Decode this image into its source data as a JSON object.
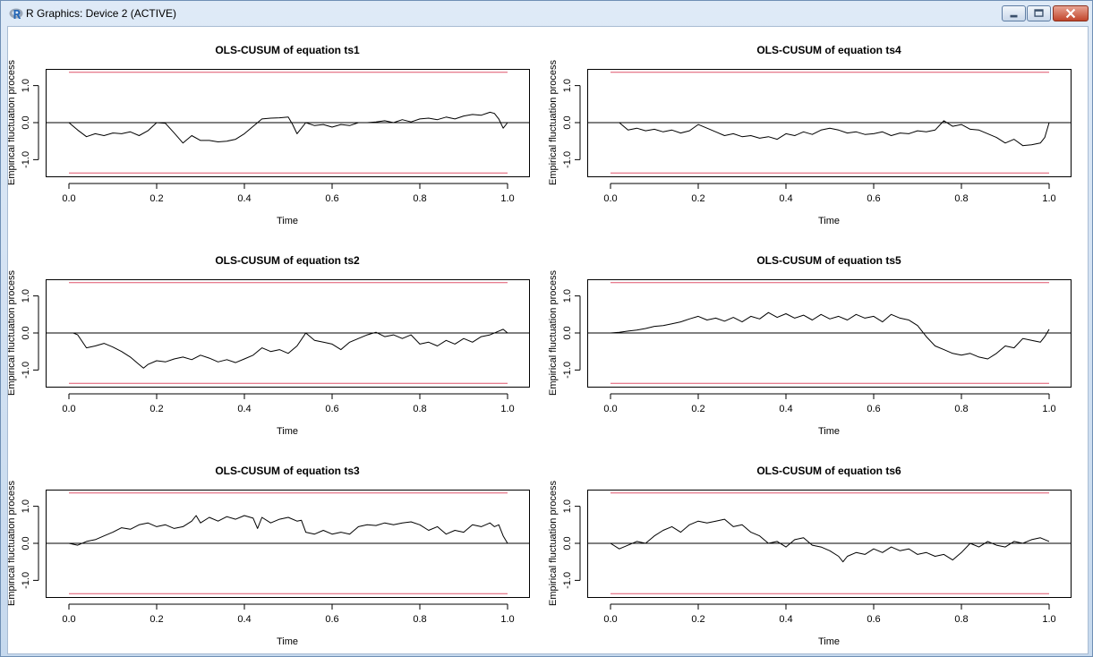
{
  "window": {
    "title": "R Graphics: Device 2 (ACTIVE)",
    "app_icon": "r-logo-icon",
    "controls": [
      "minimize-icon",
      "maximize-icon",
      "close-icon"
    ]
  },
  "colors": {
    "line": "#000000",
    "boundary": "#df536b",
    "zero_line": "#000000",
    "frame": "#000000"
  },
  "chart_data": [
    {
      "type": "line",
      "title": "OLS-CUSUM of equation ts1",
      "xlabel": "Time",
      "ylabel": "Empirical fluctuation process",
      "xlim": [
        0,
        1
      ],
      "ylim": [
        -1.45,
        1.45
      ],
      "xticks": [
        0.0,
        0.2,
        0.4,
        0.6,
        0.8,
        1.0
      ],
      "xtick_labels": [
        "0.0",
        "0.2",
        "0.4",
        "0.6",
        "0.8",
        "1.0"
      ],
      "yticks": [
        -1.0,
        0.0,
        1.0
      ],
      "ytick_labels": [
        "-1.0",
        "0.0",
        "1.0"
      ],
      "boundaries": [
        1.36,
        -1.36
      ],
      "zero_line": 0,
      "series": [
        {
          "x": [
            0.0,
            0.02,
            0.04,
            0.06,
            0.08,
            0.1,
            0.12,
            0.14,
            0.16,
            0.18,
            0.2,
            0.22,
            0.24,
            0.26,
            0.28,
            0.3,
            0.32,
            0.34,
            0.36,
            0.38,
            0.4,
            0.42,
            0.44,
            0.46,
            0.48,
            0.5,
            0.51,
            0.52,
            0.54,
            0.56,
            0.58,
            0.6,
            0.62,
            0.64,
            0.66,
            0.68,
            0.7,
            0.72,
            0.74,
            0.76,
            0.78,
            0.8,
            0.82,
            0.84,
            0.86,
            0.88,
            0.9,
            0.92,
            0.94,
            0.96,
            0.97,
            0.98,
            0.99,
            1.0
          ],
          "y": [
            0.0,
            -0.2,
            -0.38,
            -0.3,
            -0.35,
            -0.28,
            -0.3,
            -0.25,
            -0.35,
            -0.22,
            0.0,
            -0.02,
            -0.28,
            -0.55,
            -0.35,
            -0.48,
            -0.48,
            -0.52,
            -0.5,
            -0.45,
            -0.3,
            -0.1,
            0.1,
            0.12,
            0.13,
            0.15,
            -0.05,
            -0.3,
            0.0,
            -0.08,
            -0.05,
            -0.12,
            -0.05,
            -0.08,
            0.0,
            0.0,
            0.02,
            0.05,
            0.0,
            0.08,
            0.02,
            0.1,
            0.12,
            0.08,
            0.15,
            0.1,
            0.18,
            0.22,
            0.2,
            0.28,
            0.25,
            0.1,
            -0.15,
            0.0
          ]
        }
      ]
    },
    {
      "type": "line",
      "title": "OLS-CUSUM of equation ts4",
      "xlabel": "Time",
      "ylabel": "Empirical fluctuation process",
      "xlim": [
        0,
        1
      ],
      "ylim": [
        -1.45,
        1.45
      ],
      "xticks": [
        0.0,
        0.2,
        0.4,
        0.6,
        0.8,
        1.0
      ],
      "xtick_labels": [
        "0.0",
        "0.2",
        "0.4",
        "0.6",
        "0.8",
        "1.0"
      ],
      "yticks": [
        -1.0,
        0.0,
        1.0
      ],
      "ytick_labels": [
        "-1.0",
        "0.0",
        "1.0"
      ],
      "boundaries": [
        1.36,
        -1.36
      ],
      "zero_line": 0,
      "series": [
        {
          "x": [
            0.0,
            0.02,
            0.04,
            0.06,
            0.08,
            0.1,
            0.12,
            0.14,
            0.16,
            0.18,
            0.2,
            0.22,
            0.24,
            0.26,
            0.28,
            0.3,
            0.32,
            0.34,
            0.36,
            0.38,
            0.4,
            0.42,
            0.44,
            0.46,
            0.48,
            0.5,
            0.52,
            0.54,
            0.56,
            0.58,
            0.6,
            0.62,
            0.64,
            0.66,
            0.68,
            0.7,
            0.72,
            0.74,
            0.76,
            0.78,
            0.8,
            0.82,
            0.84,
            0.86,
            0.88,
            0.9,
            0.92,
            0.94,
            0.96,
            0.98,
            0.99,
            1.0
          ],
          "y": [
            0.0,
            0.0,
            -0.2,
            -0.15,
            -0.22,
            -0.18,
            -0.25,
            -0.2,
            -0.28,
            -0.22,
            -0.05,
            -0.15,
            -0.25,
            -0.35,
            -0.3,
            -0.38,
            -0.35,
            -0.42,
            -0.38,
            -0.45,
            -0.3,
            -0.35,
            -0.25,
            -0.32,
            -0.2,
            -0.15,
            -0.2,
            -0.28,
            -0.25,
            -0.32,
            -0.3,
            -0.25,
            -0.35,
            -0.28,
            -0.3,
            -0.22,
            -0.25,
            -0.2,
            0.05,
            -0.1,
            -0.05,
            -0.18,
            -0.2,
            -0.3,
            -0.4,
            -0.55,
            -0.45,
            -0.62,
            -0.6,
            -0.55,
            -0.4,
            0.0
          ]
        }
      ]
    },
    {
      "type": "line",
      "title": "OLS-CUSUM of equation ts2",
      "xlabel": "Time",
      "ylabel": "Empirical fluctuation process",
      "xlim": [
        0,
        1
      ],
      "ylim": [
        -1.45,
        1.45
      ],
      "xticks": [
        0.0,
        0.2,
        0.4,
        0.6,
        0.8,
        1.0
      ],
      "xtick_labels": [
        "0.0",
        "0.2",
        "0.4",
        "0.6",
        "0.8",
        "1.0"
      ],
      "yticks": [
        -1.0,
        0.0,
        1.0
      ],
      "ytick_labels": [
        "-1.0",
        "0.0",
        "1.0"
      ],
      "boundaries": [
        1.36,
        -1.36
      ],
      "zero_line": 0,
      "series": [
        {
          "x": [
            0.0,
            0.01,
            0.02,
            0.04,
            0.06,
            0.08,
            0.1,
            0.12,
            0.14,
            0.16,
            0.17,
            0.18,
            0.2,
            0.22,
            0.24,
            0.26,
            0.28,
            0.3,
            0.32,
            0.34,
            0.36,
            0.38,
            0.4,
            0.42,
            0.44,
            0.46,
            0.48,
            0.5,
            0.52,
            0.54,
            0.56,
            0.58,
            0.6,
            0.62,
            0.64,
            0.66,
            0.68,
            0.7,
            0.72,
            0.74,
            0.76,
            0.78,
            0.8,
            0.82,
            0.84,
            0.86,
            0.88,
            0.9,
            0.92,
            0.94,
            0.96,
            0.98,
            0.99,
            1.0
          ],
          "y": [
            0.0,
            0.0,
            -0.05,
            -0.4,
            -0.35,
            -0.28,
            -0.38,
            -0.5,
            -0.65,
            -0.85,
            -0.95,
            -0.85,
            -0.75,
            -0.78,
            -0.7,
            -0.65,
            -0.72,
            -0.6,
            -0.68,
            -0.78,
            -0.72,
            -0.8,
            -0.7,
            -0.6,
            -0.4,
            -0.5,
            -0.45,
            -0.55,
            -0.35,
            0.0,
            -0.2,
            -0.25,
            -0.3,
            -0.45,
            -0.25,
            -0.15,
            -0.05,
            0.02,
            -0.1,
            -0.05,
            -0.15,
            -0.05,
            -0.3,
            -0.25,
            -0.35,
            -0.2,
            -0.3,
            -0.15,
            -0.25,
            -0.1,
            -0.05,
            0.05,
            0.1,
            0.0
          ]
        }
      ]
    },
    {
      "type": "line",
      "title": "OLS-CUSUM of equation ts5",
      "xlabel": "Time",
      "ylabel": "Empirical fluctuation process",
      "xlim": [
        0,
        1
      ],
      "ylim": [
        -1.45,
        1.45
      ],
      "xticks": [
        0.0,
        0.2,
        0.4,
        0.6,
        0.8,
        1.0
      ],
      "xtick_labels": [
        "0.0",
        "0.2",
        "0.4",
        "0.6",
        "0.8",
        "1.0"
      ],
      "yticks": [
        -1.0,
        0.0,
        1.0
      ],
      "ytick_labels": [
        "-1.0",
        "0.0",
        "1.0"
      ],
      "boundaries": [
        1.36,
        -1.36
      ],
      "zero_line": 0,
      "series": [
        {
          "x": [
            0.0,
            0.02,
            0.04,
            0.06,
            0.08,
            0.1,
            0.12,
            0.14,
            0.16,
            0.18,
            0.2,
            0.22,
            0.24,
            0.26,
            0.28,
            0.3,
            0.32,
            0.34,
            0.36,
            0.38,
            0.4,
            0.42,
            0.44,
            0.46,
            0.48,
            0.5,
            0.52,
            0.54,
            0.56,
            0.58,
            0.6,
            0.62,
            0.64,
            0.66,
            0.68,
            0.7,
            0.72,
            0.74,
            0.76,
            0.78,
            0.8,
            0.82,
            0.84,
            0.86,
            0.88,
            0.9,
            0.92,
            0.94,
            0.96,
            0.98,
            0.99,
            1.0
          ],
          "y": [
            0.0,
            0.02,
            0.05,
            0.08,
            0.12,
            0.18,
            0.2,
            0.25,
            0.3,
            0.38,
            0.45,
            0.35,
            0.4,
            0.32,
            0.42,
            0.3,
            0.45,
            0.38,
            0.55,
            0.42,
            0.52,
            0.4,
            0.48,
            0.35,
            0.5,
            0.38,
            0.45,
            0.35,
            0.5,
            0.4,
            0.45,
            0.3,
            0.5,
            0.4,
            0.35,
            0.2,
            -0.1,
            -0.35,
            -0.45,
            -0.55,
            -0.6,
            -0.55,
            -0.65,
            -0.7,
            -0.55,
            -0.35,
            -0.4,
            -0.15,
            -0.2,
            -0.25,
            -0.1,
            0.1
          ]
        }
      ]
    },
    {
      "type": "line",
      "title": "OLS-CUSUM of equation ts3",
      "xlabel": "Time",
      "ylabel": "Empirical fluctuation process",
      "xlim": [
        0,
        1
      ],
      "ylim": [
        -1.45,
        1.45
      ],
      "xticks": [
        0.0,
        0.2,
        0.4,
        0.6,
        0.8,
        1.0
      ],
      "xtick_labels": [
        "0.0",
        "0.2",
        "0.4",
        "0.6",
        "0.8",
        "1.0"
      ],
      "yticks": [
        -1.0,
        0.0,
        1.0
      ],
      "ytick_labels": [
        "-1.0",
        "0.0",
        "1.0"
      ],
      "boundaries": [
        1.36,
        -1.36
      ],
      "zero_line": 0,
      "series": [
        {
          "x": [
            0.0,
            0.02,
            0.04,
            0.06,
            0.08,
            0.1,
            0.12,
            0.14,
            0.16,
            0.18,
            0.2,
            0.22,
            0.24,
            0.26,
            0.28,
            0.29,
            0.3,
            0.32,
            0.34,
            0.36,
            0.38,
            0.4,
            0.42,
            0.43,
            0.44,
            0.46,
            0.48,
            0.5,
            0.52,
            0.53,
            0.54,
            0.56,
            0.58,
            0.6,
            0.62,
            0.64,
            0.66,
            0.68,
            0.7,
            0.72,
            0.74,
            0.76,
            0.78,
            0.8,
            0.82,
            0.84,
            0.86,
            0.88,
            0.9,
            0.92,
            0.94,
            0.96,
            0.97,
            0.98,
            0.99,
            1.0
          ],
          "y": [
            0.0,
            -0.05,
            0.05,
            0.1,
            0.2,
            0.3,
            0.42,
            0.38,
            0.5,
            0.55,
            0.45,
            0.5,
            0.4,
            0.45,
            0.6,
            0.75,
            0.55,
            0.7,
            0.6,
            0.72,
            0.65,
            0.75,
            0.68,
            0.4,
            0.7,
            0.55,
            0.65,
            0.7,
            0.6,
            0.62,
            0.3,
            0.25,
            0.35,
            0.25,
            0.3,
            0.25,
            0.45,
            0.5,
            0.48,
            0.55,
            0.5,
            0.55,
            0.58,
            0.5,
            0.35,
            0.45,
            0.25,
            0.35,
            0.3,
            0.5,
            0.45,
            0.55,
            0.45,
            0.5,
            0.2,
            0.0
          ]
        }
      ]
    },
    {
      "type": "line",
      "title": "OLS-CUSUM of equation ts6",
      "xlabel": "Time",
      "ylabel": "Empirical fluctuation process",
      "xlim": [
        0,
        1
      ],
      "ylim": [
        -1.45,
        1.45
      ],
      "xticks": [
        0.0,
        0.2,
        0.4,
        0.6,
        0.8,
        1.0
      ],
      "xtick_labels": [
        "0.0",
        "0.2",
        "0.4",
        "0.6",
        "0.8",
        "1.0"
      ],
      "yticks": [
        -1.0,
        0.0,
        1.0
      ],
      "ytick_labels": [
        "-1.0",
        "0.0",
        "1.0"
      ],
      "boundaries": [
        1.36,
        -1.36
      ],
      "zero_line": 0,
      "series": [
        {
          "x": [
            0.0,
            0.02,
            0.04,
            0.06,
            0.08,
            0.1,
            0.12,
            0.14,
            0.16,
            0.18,
            0.2,
            0.22,
            0.24,
            0.26,
            0.28,
            0.3,
            0.32,
            0.34,
            0.36,
            0.38,
            0.4,
            0.42,
            0.44,
            0.46,
            0.48,
            0.5,
            0.52,
            0.53,
            0.54,
            0.56,
            0.58,
            0.6,
            0.62,
            0.64,
            0.66,
            0.68,
            0.7,
            0.72,
            0.74,
            0.76,
            0.78,
            0.8,
            0.82,
            0.84,
            0.86,
            0.88,
            0.9,
            0.92,
            0.94,
            0.96,
            0.98,
            1.0
          ],
          "y": [
            0.0,
            -0.15,
            -0.05,
            0.05,
            0.0,
            0.2,
            0.35,
            0.45,
            0.3,
            0.5,
            0.6,
            0.55,
            0.6,
            0.65,
            0.45,
            0.5,
            0.3,
            0.2,
            0.0,
            0.05,
            -0.1,
            0.1,
            0.15,
            -0.05,
            -0.1,
            -0.2,
            -0.35,
            -0.5,
            -0.35,
            -0.25,
            -0.3,
            -0.15,
            -0.25,
            -0.1,
            -0.2,
            -0.15,
            -0.3,
            -0.25,
            -0.35,
            -0.3,
            -0.45,
            -0.25,
            0.0,
            -0.1,
            0.05,
            -0.05,
            -0.1,
            0.05,
            0.0,
            0.1,
            0.15,
            0.05
          ]
        }
      ]
    }
  ]
}
